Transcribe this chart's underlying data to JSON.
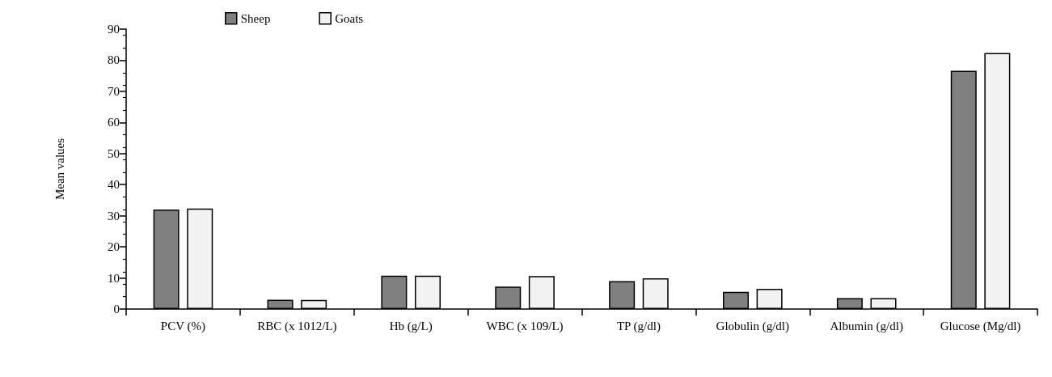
{
  "chart_data": {
    "type": "bar",
    "ylabel": "Mean values",
    "categories": [
      "PCV (%)",
      "RBC (x 1012/L)",
      "Hb (g/L)",
      "WBC (x 109/L)",
      "TP (g/dl)",
      "Globulin (g/dl)",
      "Albumin (g/dl)",
      "Glucose (Mg/dl)"
    ],
    "series": [
      {
        "name": "Sheep",
        "color": "#808080",
        "values": [
          32,
          3,
          10.7,
          7.2,
          9,
          5.5,
          3.5,
          76.6
        ]
      },
      {
        "name": "Goats",
        "color": "#f2f2f2",
        "values": [
          32.3,
          2.9,
          10.7,
          10.6,
          9.9,
          6.5,
          3.5,
          82.3
        ]
      }
    ],
    "ylim": [
      0,
      90
    ],
    "yticks": [
      0,
      10,
      20,
      30,
      40,
      50,
      60,
      70,
      80,
      90
    ],
    "grid": false,
    "legend": "top left"
  }
}
